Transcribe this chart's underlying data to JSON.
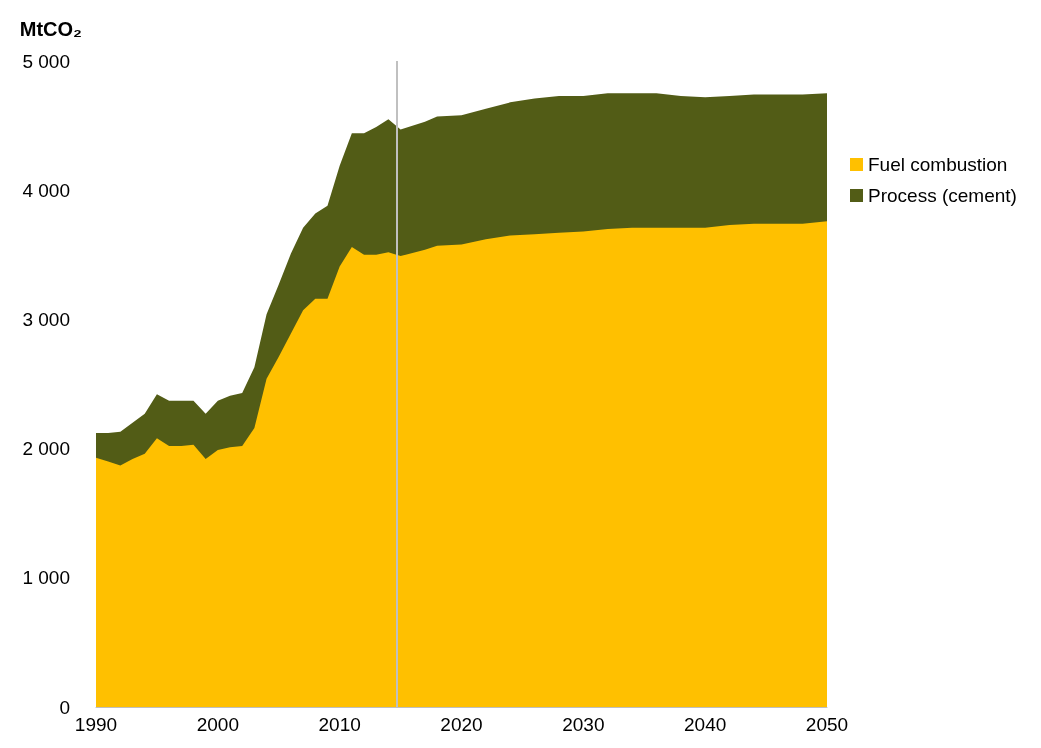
{
  "chart_data": {
    "type": "area",
    "stacked": true,
    "ylabel": "MtCO₂",
    "x": [
      1990,
      1991,
      1992,
      1993,
      1994,
      1995,
      1996,
      1997,
      1998,
      1999,
      2000,
      2001,
      2002,
      2003,
      2004,
      2005,
      2006,
      2007,
      2008,
      2009,
      2010,
      2011,
      2012,
      2013,
      2014,
      2015,
      2017,
      2018,
      2020,
      2022,
      2024,
      2026,
      2028,
      2030,
      2032,
      2034,
      2036,
      2038,
      2040,
      2042,
      2044,
      2046,
      2048,
      2050
    ],
    "series": [
      {
        "name": "Fuel combustion",
        "color": "#ffc000",
        "values": [
          1930,
          1900,
          1870,
          1920,
          1960,
          2080,
          2020,
          2020,
          2030,
          1920,
          1990,
          2010,
          2020,
          2160,
          2540,
          2710,
          2890,
          3070,
          3160,
          3160,
          3410,
          3560,
          3500,
          3500,
          3520,
          3490,
          3540,
          3570,
          3580,
          3620,
          3650,
          3660,
          3670,
          3680,
          3700,
          3710,
          3710,
          3710,
          3710,
          3730,
          3740,
          3740,
          3740,
          3760
        ]
      },
      {
        "name": "Process (cement)",
        "color": "#525c16",
        "values": [
          190,
          220,
          260,
          280,
          310,
          340,
          350,
          350,
          340,
          350,
          380,
          400,
          410,
          470,
          500,
          560,
          620,
          640,
          660,
          720,
          780,
          880,
          940,
          990,
          1030,
          980,
          990,
          1000,
          1000,
          1010,
          1030,
          1050,
          1060,
          1050,
          1050,
          1040,
          1040,
          1020,
          1010,
          1000,
          1000,
          1000,
          1000,
          990
        ]
      }
    ],
    "xlim": [
      1990,
      2050
    ],
    "xticks": [
      1990,
      2000,
      2010,
      2020,
      2030,
      2040,
      2050
    ],
    "ylim": [
      0,
      5000
    ],
    "yticks": [
      0,
      {
        "value": 1000,
        "label": "1 000"
      },
      {
        "value": 2000,
        "label": "2 000"
      },
      {
        "value": 3000,
        "label": "3 000"
      },
      {
        "value": 4000,
        "label": "4 000"
      },
      {
        "value": 5000,
        "label": "5 000"
      }
    ],
    "ref_lines": [
      {
        "axis": "x",
        "value": 2014.7,
        "color": "#c0c0c0"
      }
    ],
    "grid": false,
    "legend": "right"
  }
}
